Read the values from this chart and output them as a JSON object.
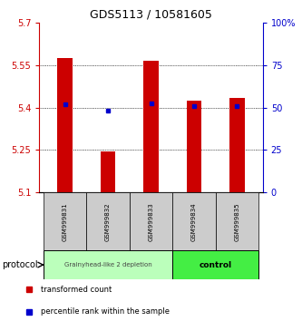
{
  "title": "GDS5113 / 10581605",
  "samples": [
    "GSM999831",
    "GSM999832",
    "GSM999833",
    "GSM999834",
    "GSM999835"
  ],
  "bar_tops": [
    5.575,
    5.245,
    5.565,
    5.425,
    5.435
  ],
  "bar_bottom": 5.1,
  "bar_color": "#cc0000",
  "percentile_values": [
    5.41,
    5.39,
    5.415,
    5.405,
    5.405
  ],
  "percentile_color": "#0000cc",
  "ylim_left": [
    5.1,
    5.7
  ],
  "yticks_left": [
    5.1,
    5.25,
    5.4,
    5.55,
    5.7
  ],
  "ylim_right": [
    0,
    100
  ],
  "yticks_right": [
    0,
    25,
    50,
    75,
    100
  ],
  "yticklabels_right": [
    "0",
    "25",
    "50",
    "75",
    "100%"
  ],
  "left_axis_color": "#cc0000",
  "right_axis_color": "#0000cc",
  "group1_indices": [
    0,
    1,
    2
  ],
  "group2_indices": [
    3,
    4
  ],
  "group1_label": "Grainyhead-like 2 depletion",
  "group2_label": "control",
  "group1_color": "#bbffbb",
  "group2_color": "#44ee44",
  "protocol_label": "protocol",
  "legend_red_label": "transformed count",
  "legend_blue_label": "percentile rank within the sample",
  "bar_width": 0.35,
  "background_color": "#ffffff",
  "sample_box_color": "#cccccc",
  "tick_fontsize": 7,
  "title_fontsize": 9
}
